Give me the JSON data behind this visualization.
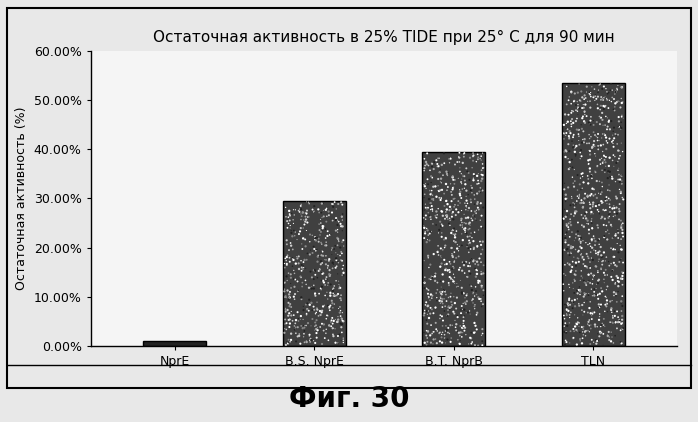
{
  "categories": [
    "NprE",
    "B.S. NprE",
    "B.T. NprB",
    "TLN"
  ],
  "values": [
    0.01,
    0.295,
    0.395,
    0.535
  ],
  "title": "Остаточная активность в 25% TIDE при 25° С для 90 мин",
  "ylabel": "Остаточная активность (%)",
  "ylim": [
    0,
    0.6
  ],
  "yticks": [
    0.0,
    0.1,
    0.2,
    0.3,
    0.4,
    0.5,
    0.6
  ],
  "ytick_labels": [
    "0.00%",
    "10.00%",
    "20.00%",
    "30.00%",
    "40.00%",
    "50.00%",
    "60.00%"
  ],
  "background_color": "#f0f0f0",
  "caption": "Фиг. 30",
  "title_fontsize": 11,
  "ylabel_fontsize": 9,
  "tick_fontsize": 9,
  "caption_fontsize": 20,
  "bar_width": 0.45
}
